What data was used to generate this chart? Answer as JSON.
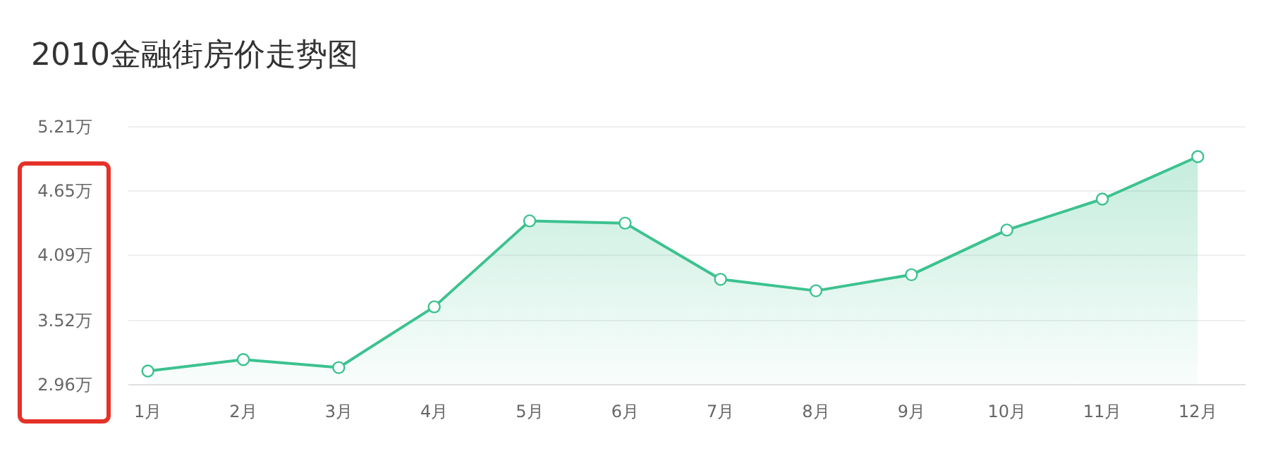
{
  "chart_data": {
    "type": "area",
    "title": "2010金融街房价走势图",
    "categories": [
      "1月",
      "2月",
      "3月",
      "4月",
      "5月",
      "6月",
      "7月",
      "8月",
      "9月",
      "10月",
      "11月",
      "12月"
    ],
    "series": [
      {
        "color": "#3cc28f",
        "values": [
          3.08,
          3.18,
          3.11,
          3.64,
          4.39,
          4.37,
          3.88,
          3.78,
          3.92,
          4.31,
          4.58,
          4.95
        ]
      }
    ],
    "ylim": [
      2.96,
      5.21
    ],
    "yticks": [
      {
        "value": 2.96,
        "label": "2.96万"
      },
      {
        "value": 3.52,
        "label": "3.52万"
      },
      {
        "value": 4.09,
        "label": "4.09万"
      },
      {
        "value": 4.65,
        "label": "4.65万"
      },
      {
        "value": 5.21,
        "label": "5.21万"
      }
    ],
    "grid": "y",
    "marker": "circle",
    "line_style": "solid"
  }
}
